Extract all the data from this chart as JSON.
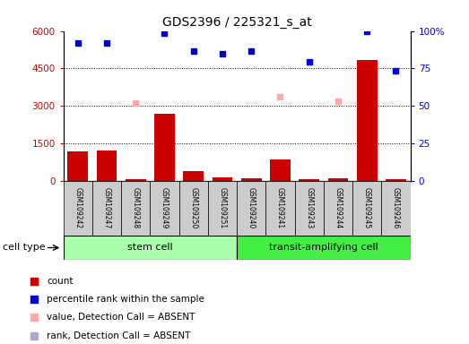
{
  "title": "GDS2396 / 225321_s_at",
  "samples": [
    "GSM109242",
    "GSM109247",
    "GSM109248",
    "GSM109249",
    "GSM109250",
    "GSM109251",
    "GSM109240",
    "GSM109241",
    "GSM109243",
    "GSM109244",
    "GSM109245",
    "GSM109246"
  ],
  "count_values": [
    1180,
    1220,
    60,
    2680,
    380,
    120,
    80,
    850,
    60,
    80,
    4850,
    60
  ],
  "percentile_values": [
    5500,
    5500,
    null,
    5900,
    5200,
    5100,
    5200,
    null,
    4750,
    null,
    6000,
    4400
  ],
  "absent_value_values": [
    null,
    null,
    3100,
    null,
    null,
    null,
    null,
    3350,
    null,
    3200,
    null,
    null
  ],
  "absent_rank_values": [
    null,
    null,
    null,
    null,
    null,
    null,
    null,
    null,
    null,
    null,
    null,
    null
  ],
  "ylim_left": [
    0,
    6000
  ],
  "ylim_right": [
    0,
    100
  ],
  "yticks_left": [
    0,
    1500,
    3000,
    4500,
    6000
  ],
  "ytick_labels_left": [
    "0",
    "1500",
    "3000",
    "4500",
    "6000"
  ],
  "yticks_right": [
    0,
    25,
    50,
    75,
    100
  ],
  "ytick_labels_right": [
    "0",
    "25",
    "50",
    "75",
    "100%"
  ],
  "bar_color": "#cc0000",
  "percentile_color": "#0000cc",
  "absent_value_color": "#ffaaaa",
  "absent_rank_color": "#aaaacc",
  "stem_cell_color": "#aaffaa",
  "transit_cell_color": "#44ee44",
  "cell_type_groups": [
    {
      "label": "stem cell",
      "start": 0,
      "end": 5
    },
    {
      "label": "transit-amplifying cell",
      "start": 6,
      "end": 11
    }
  ],
  "legend_items": [
    {
      "label": "count",
      "color": "#cc0000"
    },
    {
      "label": "percentile rank within the sample",
      "color": "#0000cc"
    },
    {
      "label": "value, Detection Call = ABSENT",
      "color": "#ffaaaa"
    },
    {
      "label": "rank, Detection Call = ABSENT",
      "color": "#aaaacc"
    }
  ],
  "fig_width": 5.23,
  "fig_height": 3.84,
  "dpi": 100
}
